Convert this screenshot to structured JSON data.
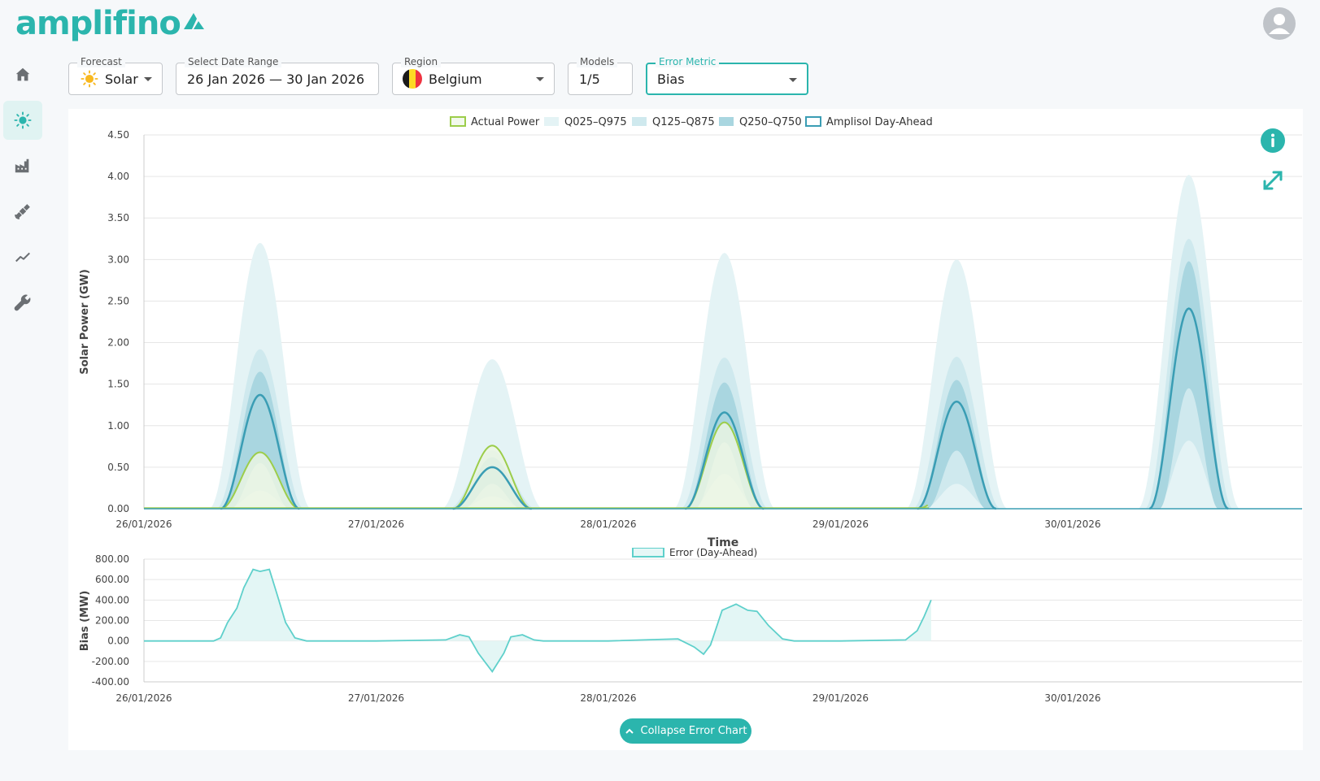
{
  "app": {
    "name": "amplifino"
  },
  "sidebar": {
    "items": [
      {
        "icon": "home-icon",
        "active": false
      },
      {
        "icon": "sun-icon",
        "active": true
      },
      {
        "icon": "factory-icon",
        "active": false
      },
      {
        "icon": "satellite-icon",
        "active": false
      },
      {
        "icon": "trend-icon",
        "active": false
      },
      {
        "icon": "wrench-icon",
        "active": false
      }
    ]
  },
  "filters": {
    "forecast": {
      "label": "Forecast",
      "value": "Solar",
      "icon": "sun-emoji-icon"
    },
    "date_range": {
      "label": "Select Date Range",
      "value": "26 Jan 2026 — 30 Jan 2026"
    },
    "region": {
      "label": "Region",
      "value": "Belgium",
      "icon": "belgium-flag-icon"
    },
    "models": {
      "label": "Models",
      "value": "1/5"
    },
    "error_metric": {
      "label": "Error Metric",
      "value": "Bias"
    }
  },
  "colors": {
    "accent": "#2bb5ad",
    "actual": "#9ccd4a",
    "dayahead": "#3a9db4",
    "q025": "#e4f3f5",
    "q125": "#cfe9ee",
    "q250": "#a9d6e0",
    "error": "#5fd0cb"
  },
  "chart_data": [
    {
      "type": "area",
      "legend": [
        "Actual Power",
        "Q025–Q975",
        "Q125–Q875",
        "Q250–Q750",
        "Amplisol Day-Ahead"
      ],
      "xlabel": "Time",
      "ylabel": "Solar Power (GW)",
      "ylim": [
        0,
        4.5
      ],
      "yticks": [
        "4.50",
        "4.00",
        "3.50",
        "3.00",
        "2.50",
        "2.00",
        "1.50",
        "1.00",
        "0.50",
        "0.00"
      ],
      "xticks": [
        "26/01/2026",
        "27/01/2026",
        "28/01/2026",
        "29/01/2026",
        "30/01/2026"
      ],
      "grid": true,
      "legend_position": "top",
      "days": [
        {
          "date": "26/01/2026",
          "dayahead_peak": 1.37,
          "actual_peak": 0.68,
          "q025": 0.0,
          "q975": 3.2,
          "q125": 0.22,
          "q875": 1.92,
          "q250": 0.55,
          "q750": 1.65
        },
        {
          "date": "27/01/2026",
          "dayahead_peak": 0.5,
          "actual_peak": 0.76,
          "q025": 0.0,
          "q975": 1.8,
          "q125": 0.15,
          "q875": 0.7,
          "q250": 0.3,
          "q750": 0.62
        },
        {
          "date": "28/01/2026",
          "dayahead_peak": 1.16,
          "actual_peak": 1.04,
          "q025": 0.0,
          "q975": 3.08,
          "q125": 0.42,
          "q875": 1.82,
          "q250": 0.8,
          "q750": 1.52
        },
        {
          "date": "29/01/2026",
          "dayahead_peak": 1.29,
          "actual_peak": 0.27,
          "q025": 0.0,
          "q975": 3.0,
          "q125": 0.3,
          "q875": 1.83,
          "q250": 0.7,
          "q750": 1.55
        },
        {
          "date": "30/01/2026",
          "dayahead_peak": 2.41,
          "actual_peak": null,
          "q025": 0.0,
          "q975": 4.02,
          "q125": 0.82,
          "q875": 3.25,
          "q250": 1.45,
          "q750": 2.98
        }
      ]
    },
    {
      "type": "area",
      "legend": [
        "Error (Day-Ahead)"
      ],
      "ylabel": "Bias (MW)",
      "ylim": [
        -400,
        800
      ],
      "yticks": [
        "800.00",
        "600.00",
        "400.00",
        "200.00",
        "0.00",
        "-200.00",
        "-400.00"
      ],
      "xticks": [
        "26/01/2026",
        "27/01/2026",
        "28/01/2026",
        "29/01/2026",
        "30/01/2026"
      ],
      "grid": true,
      "legend_position": "top",
      "series": [
        {
          "name": "Error (Day-Ahead)",
          "values": [
            {
              "day": 0.0,
              "v": 0
            },
            {
              "day": 0.3,
              "v": 0
            },
            {
              "day": 0.33,
              "v": 30
            },
            {
              "day": 0.36,
              "v": 180
            },
            {
              "day": 0.4,
              "v": 320
            },
            {
              "day": 0.43,
              "v": 520
            },
            {
              "day": 0.47,
              "v": 700
            },
            {
              "day": 0.5,
              "v": 680
            },
            {
              "day": 0.54,
              "v": 700
            },
            {
              "day": 0.57,
              "v": 480
            },
            {
              "day": 0.61,
              "v": 180
            },
            {
              "day": 0.65,
              "v": 30
            },
            {
              "day": 0.7,
              "v": 0
            },
            {
              "day": 1.0,
              "v": 0
            },
            {
              "day": 1.3,
              "v": 10
            },
            {
              "day": 1.36,
              "v": 60
            },
            {
              "day": 1.4,
              "v": 40
            },
            {
              "day": 1.44,
              "v": -120
            },
            {
              "day": 1.5,
              "v": -300
            },
            {
              "day": 1.55,
              "v": -120
            },
            {
              "day": 1.58,
              "v": 40
            },
            {
              "day": 1.63,
              "v": 60
            },
            {
              "day": 1.68,
              "v": 10
            },
            {
              "day": 1.72,
              "v": 0
            },
            {
              "day": 2.0,
              "v": 0
            },
            {
              "day": 2.3,
              "v": 20
            },
            {
              "day": 2.37,
              "v": -60
            },
            {
              "day": 2.41,
              "v": -130
            },
            {
              "day": 2.44,
              "v": -40
            },
            {
              "day": 2.49,
              "v": 300
            },
            {
              "day": 2.55,
              "v": 360
            },
            {
              "day": 2.6,
              "v": 300
            },
            {
              "day": 2.64,
              "v": 290
            },
            {
              "day": 2.69,
              "v": 150
            },
            {
              "day": 2.75,
              "v": 20
            },
            {
              "day": 2.8,
              "v": 0
            },
            {
              "day": 3.0,
              "v": 0
            },
            {
              "day": 3.28,
              "v": 10
            },
            {
              "day": 3.33,
              "v": 100
            },
            {
              "day": 3.36,
              "v": 240
            },
            {
              "day": 3.39,
              "v": 400
            }
          ]
        }
      ]
    }
  ],
  "actions": {
    "collapse_label": "Collapse Error Chart"
  }
}
